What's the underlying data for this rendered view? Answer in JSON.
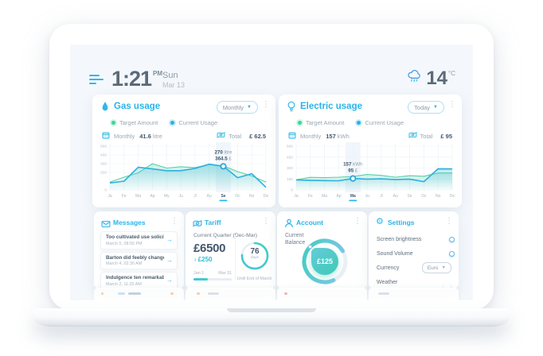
{
  "topbar": {
    "time": "1:21",
    "meridiem": "PM",
    "day": "Sun",
    "date": "Mar 13",
    "temperature": "14",
    "temperature_unit": "°C"
  },
  "colors": {
    "accent": "#28b5e9",
    "target_green": "#57d0a8",
    "current_blue": "#2fb0df",
    "text_dark": "#44566c",
    "text_gray": "#9aa7b5",
    "teal": "#3fc9b5"
  },
  "gas_card": {
    "title": "Gas usage",
    "range": "Monthly",
    "period_label": "Monthly",
    "period_value": "41.6",
    "period_unit": "litre",
    "total_label": "Total",
    "total_value": "£ 62.5"
  },
  "electric_card": {
    "title": "Electric usage",
    "range": "Today",
    "period_label": "Monthly",
    "period_value": "157",
    "period_unit": "kWh",
    "total_label": "Total",
    "total_value": "£ 95"
  },
  "chart_data": [
    {
      "type": "area",
      "title": "Gas usage",
      "ylabel": "litre",
      "categories": [
        "Ja",
        "Fe",
        "Ma",
        "Ap",
        "My",
        "Ju",
        "Jl",
        "Au",
        "Se",
        "Oc",
        "No",
        "De"
      ],
      "series": [
        {
          "name": "Target Amount",
          "color": "#57d0a8",
          "values": [
            90,
            145,
            195,
            300,
            250,
            265,
            255,
            290,
            275,
            210,
            160,
            90
          ]
        },
        {
          "name": "Current Usage",
          "color": "#2fb0df",
          "values": [
            80,
            100,
            260,
            240,
            220,
            220,
            245,
            295,
            270,
            140,
            185,
            30
          ]
        }
      ],
      "ylim": [
        0,
        500
      ],
      "yticks": [
        0,
        200,
        300,
        400,
        500
      ],
      "highlight": {
        "index": 8,
        "category": "Se",
        "tooltip": [
          {
            "value": "270",
            "unit": "litre"
          },
          {
            "value": "364.5",
            "unit": "£"
          }
        ]
      }
    },
    {
      "type": "area",
      "title": "Electric usage",
      "ylabel": "kWh",
      "categories": [
        "Ja",
        "Fe",
        "Ma",
        "Ap",
        "Ma",
        "Ju",
        "Jl",
        "Au",
        "Se",
        "Oc",
        "No",
        "De"
      ],
      "series": [
        {
          "name": "Target Amount",
          "color": "#57d0a8",
          "values": [
            140,
            172,
            168,
            175,
            185,
            212,
            200,
            175,
            195,
            188,
            232,
            232
          ]
        },
        {
          "name": "Current Usage",
          "color": "#2fb0df",
          "values": [
            138,
            132,
            128,
            125,
            157,
            148,
            152,
            143,
            148,
            113,
            290,
            288
          ]
        }
      ],
      "ylim": [
        0,
        600
      ],
      "yticks": [
        0,
        150,
        300,
        450,
        600
      ],
      "highlight": {
        "index": 4,
        "category": "Ma",
        "tooltip": [
          {
            "value": "157",
            "unit": "kWh"
          },
          {
            "value": "95",
            "unit": "£"
          }
        ]
      }
    }
  ],
  "messages": {
    "title": "Messages",
    "items": [
      {
        "subject": "Too cultivated use solicitude",
        "time": "March 5, 08:55 PM"
      },
      {
        "subject": "Barton did feebly change man",
        "time": "March 4, 02:30 AM"
      },
      {
        "subject": "Indulgence ten remarkably",
        "time": "March 2, 11:20 AM"
      }
    ]
  },
  "tariff": {
    "title": "Tariff",
    "subtitle": "Current Quarter (Dec-Mar)",
    "amount": "£6500",
    "delta": "£250",
    "period_start": "Jan 1",
    "period_end": "Mar 31",
    "progress_pct": 38,
    "days_value": "76",
    "days_label": "days",
    "days_pct": 76,
    "footnote": "Until End of March"
  },
  "account": {
    "title": "Account",
    "balance_label": "Current Balance",
    "balance_value": "£125"
  },
  "settings": {
    "title": "Settings",
    "rows": [
      {
        "label": "Screen brightness",
        "type": "slider",
        "value": 62
      },
      {
        "label": "Sound Volume",
        "type": "slider",
        "value": 25
      },
      {
        "label": "Currency",
        "type": "select",
        "value": "Euro"
      },
      {
        "label": "Weather",
        "type": "toggle",
        "value": true
      }
    ]
  }
}
